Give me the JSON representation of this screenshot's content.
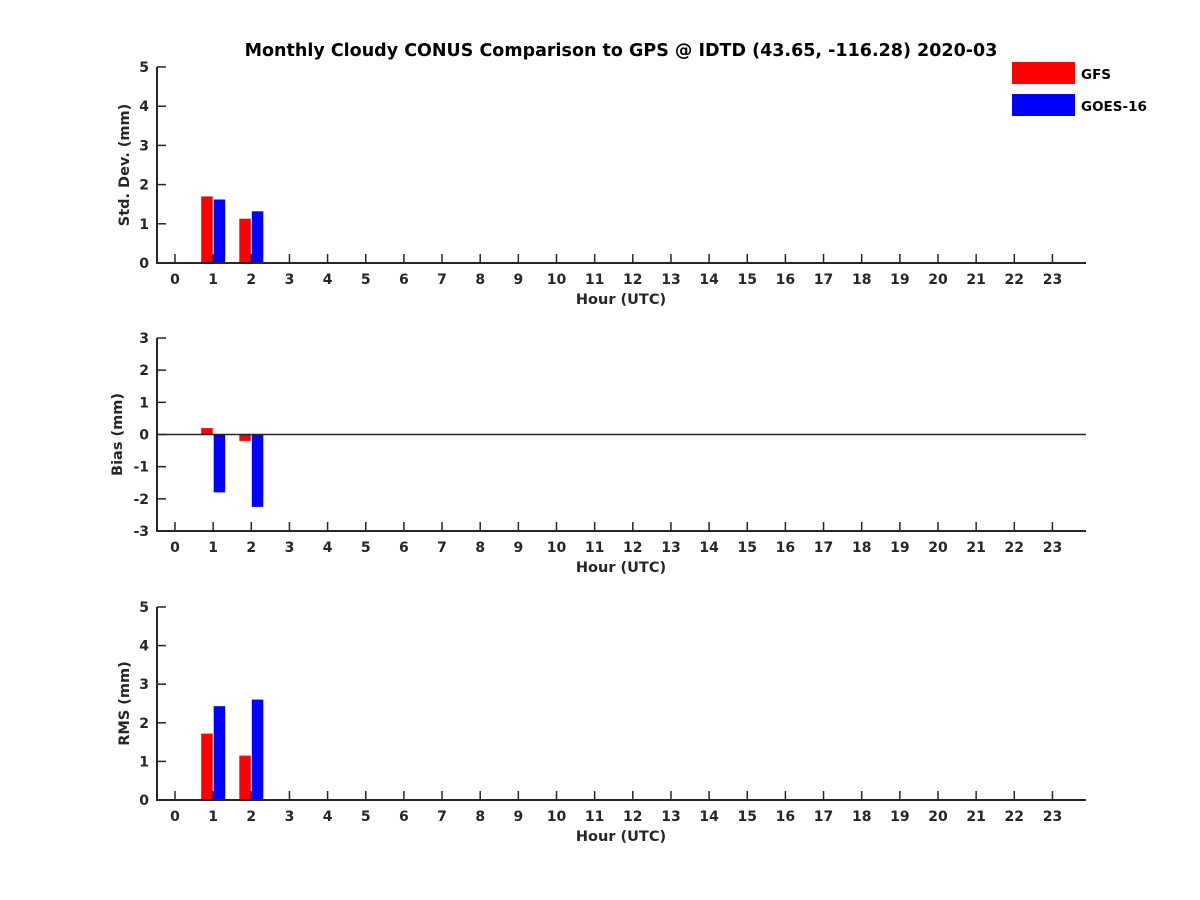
{
  "title": "Monthly Cloudy CONUS Comparison to GPS @ IDTD (43.65, -116.28) 2020-03",
  "legend": {
    "placement": "top-right",
    "entries": [
      {
        "name": "GFS",
        "color": "#ff0000"
      },
      {
        "name": "GOES-16",
        "color": "#0000ff"
      }
    ]
  },
  "chart_data": [
    {
      "type": "bar",
      "xlabel": "Hour (UTC)",
      "ylabel": "Std. Dev. (mm)",
      "ylim": [
        0,
        5
      ],
      "yticks": [
        0,
        1,
        2,
        3,
        4,
        5
      ],
      "categories": [
        "0",
        "1",
        "2",
        "3",
        "4",
        "5",
        "6",
        "7",
        "8",
        "9",
        "10",
        "11",
        "12",
        "13",
        "14",
        "15",
        "16",
        "17",
        "18",
        "19",
        "20",
        "21",
        "22",
        "23"
      ],
      "grid": false,
      "zero_line": false,
      "series": [
        {
          "name": "GFS",
          "color": "#ff0000",
          "values": [
            null,
            1.7,
            1.13,
            null,
            null,
            null,
            null,
            null,
            null,
            null,
            null,
            null,
            null,
            null,
            null,
            null,
            null,
            null,
            null,
            null,
            null,
            null,
            null,
            null
          ]
        },
        {
          "name": "GOES-16",
          "color": "#0000ff",
          "values": [
            null,
            1.62,
            1.32,
            null,
            null,
            null,
            null,
            null,
            null,
            null,
            null,
            null,
            null,
            null,
            null,
            null,
            null,
            null,
            null,
            null,
            null,
            null,
            null,
            null
          ]
        }
      ]
    },
    {
      "type": "bar",
      "xlabel": "Hour (UTC)",
      "ylabel": "Bias (mm)",
      "ylim": [
        -3,
        3
      ],
      "yticks": [
        -3,
        -2,
        -1,
        0,
        1,
        2,
        3
      ],
      "categories": [
        "0",
        "1",
        "2",
        "3",
        "4",
        "5",
        "6",
        "7",
        "8",
        "9",
        "10",
        "11",
        "12",
        "13",
        "14",
        "15",
        "16",
        "17",
        "18",
        "19",
        "20",
        "21",
        "22",
        "23"
      ],
      "grid": false,
      "zero_line": true,
      "series": [
        {
          "name": "GFS",
          "color": "#ff0000",
          "values": [
            null,
            0.2,
            -0.2,
            null,
            null,
            null,
            null,
            null,
            null,
            null,
            null,
            null,
            null,
            null,
            null,
            null,
            null,
            null,
            null,
            null,
            null,
            null,
            null,
            null
          ]
        },
        {
          "name": "GOES-16",
          "color": "#0000ff",
          "values": [
            null,
            -1.8,
            -2.25,
            null,
            null,
            null,
            null,
            null,
            null,
            null,
            null,
            null,
            null,
            null,
            null,
            null,
            null,
            null,
            null,
            null,
            null,
            null,
            null,
            null
          ]
        }
      ]
    },
    {
      "type": "bar",
      "xlabel": "Hour (UTC)",
      "ylabel": "RMS (mm)",
      "ylim": [
        0,
        5
      ],
      "yticks": [
        0,
        1,
        2,
        3,
        4,
        5
      ],
      "categories": [
        "0",
        "1",
        "2",
        "3",
        "4",
        "5",
        "6",
        "7",
        "8",
        "9",
        "10",
        "11",
        "12",
        "13",
        "14",
        "15",
        "16",
        "17",
        "18",
        "19",
        "20",
        "21",
        "22",
        "23"
      ],
      "grid": false,
      "zero_line": false,
      "series": [
        {
          "name": "GFS",
          "color": "#ff0000",
          "values": [
            null,
            1.72,
            1.15,
            null,
            null,
            null,
            null,
            null,
            null,
            null,
            null,
            null,
            null,
            null,
            null,
            null,
            null,
            null,
            null,
            null,
            null,
            null,
            null,
            null
          ]
        },
        {
          "name": "GOES-16",
          "color": "#0000ff",
          "values": [
            null,
            2.43,
            2.6,
            null,
            null,
            null,
            null,
            null,
            null,
            null,
            null,
            null,
            null,
            null,
            null,
            null,
            null,
            null,
            null,
            null,
            null,
            null,
            null,
            null
          ]
        }
      ]
    }
  ]
}
